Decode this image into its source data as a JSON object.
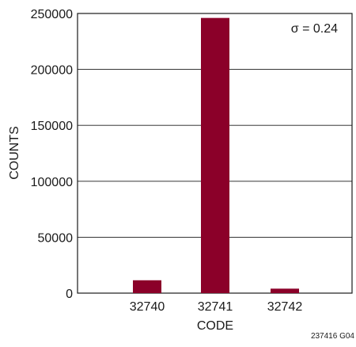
{
  "chart_data": {
    "type": "bar",
    "categories": [
      "32740",
      "32741",
      "32742"
    ],
    "values": [
      11500,
      246000,
      4000
    ],
    "xlabel": "CODE",
    "ylabel": "COUNTS",
    "ylim": [
      0,
      250000
    ],
    "yticks": [
      0,
      50000,
      100000,
      150000,
      200000,
      250000
    ],
    "ytick_labels": [
      "0",
      "50000",
      "100000",
      "150000",
      "200000",
      "250000"
    ],
    "grid": "horizontal",
    "annotation": "σ = 0.24",
    "figure_id": "237416 G04",
    "bar_color": "#8b0029"
  }
}
